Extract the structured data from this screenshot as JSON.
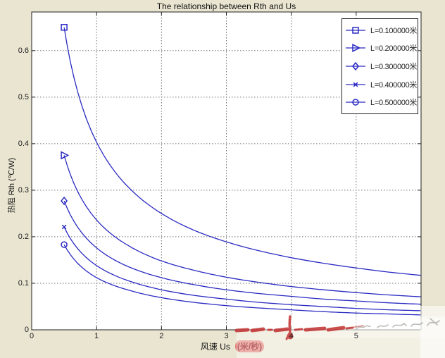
{
  "figure": {
    "title": "The relationship between Rth and Us",
    "ylabel": "热阻  Rth (℃/W)",
    "xlabel_prefix": "风速  Us",
    "xlabel_unit": "(米/秒)",
    "background_color": "#e9e5d1",
    "plot_background": "#ffffff",
    "axis_color": "#222222",
    "grid_color": "#6f6f6f",
    "line_color": "#2a2ac2",
    "legend_border_color": "#222222"
  },
  "chart_data": {
    "type": "line",
    "title": "The relationship between Rth and Us",
    "xlabel": "风速 Us (米/秒)",
    "ylabel": "热阻 Rth (℃/W)",
    "xlim": [
      0,
      6
    ],
    "ylim": [
      0,
      0.683
    ],
    "x_ticks": [
      0,
      1,
      2,
      3,
      4,
      5
    ],
    "y_ticks": [
      0,
      0.1,
      0.2,
      0.3,
      0.4,
      0.5,
      0.6
    ],
    "grid": true,
    "grid_style": "dotted",
    "legend_position": "top-right",
    "marker_at_first_point_only": true,
    "x": [
      0.5,
      1,
      1.5,
      2,
      2.5,
      3,
      3.5,
      4,
      4.5,
      5,
      5.5,
      6
    ],
    "series": [
      {
        "name": "L=0.100000米",
        "L": 0.1,
        "marker": "square",
        "values": [
          0.65,
          0.403,
          0.305,
          0.25,
          0.214,
          0.189,
          0.17,
          0.155,
          0.143,
          0.133,
          0.124,
          0.117
        ]
      },
      {
        "name": "L=0.200000米",
        "L": 0.2,
        "marker": "triangle-right",
        "values": [
          0.375,
          0.236,
          0.18,
          0.148,
          0.128,
          0.113,
          0.102,
          0.093,
          0.086,
          0.08,
          0.075,
          0.071
        ]
      },
      {
        "name": "L=0.300000米",
        "L": 0.3,
        "marker": "diamond",
        "values": [
          0.277,
          0.176,
          0.135,
          0.112,
          0.097,
          0.086,
          0.078,
          0.072,
          0.066,
          0.062,
          0.058,
          0.055
        ]
      },
      {
        "name": "L=0.400000米",
        "L": 0.4,
        "marker": "x",
        "values": [
          0.221,
          0.138,
          0.105,
          0.086,
          0.074,
          0.066,
          0.059,
          0.054,
          0.05,
          0.046,
          0.043,
          0.041
        ]
      },
      {
        "name": "L=0.500000米",
        "L": 0.5,
        "marker": "circle",
        "values": [
          0.183,
          0.112,
          0.085,
          0.069,
          0.059,
          0.052,
          0.047,
          0.043,
          0.039,
          0.036,
          0.034,
          0.032
        ]
      }
    ]
  },
  "annotations": {
    "red_scribble_color": "#c23030",
    "handwriting_color": "#87877f",
    "washout_color": "#ffffff"
  }
}
